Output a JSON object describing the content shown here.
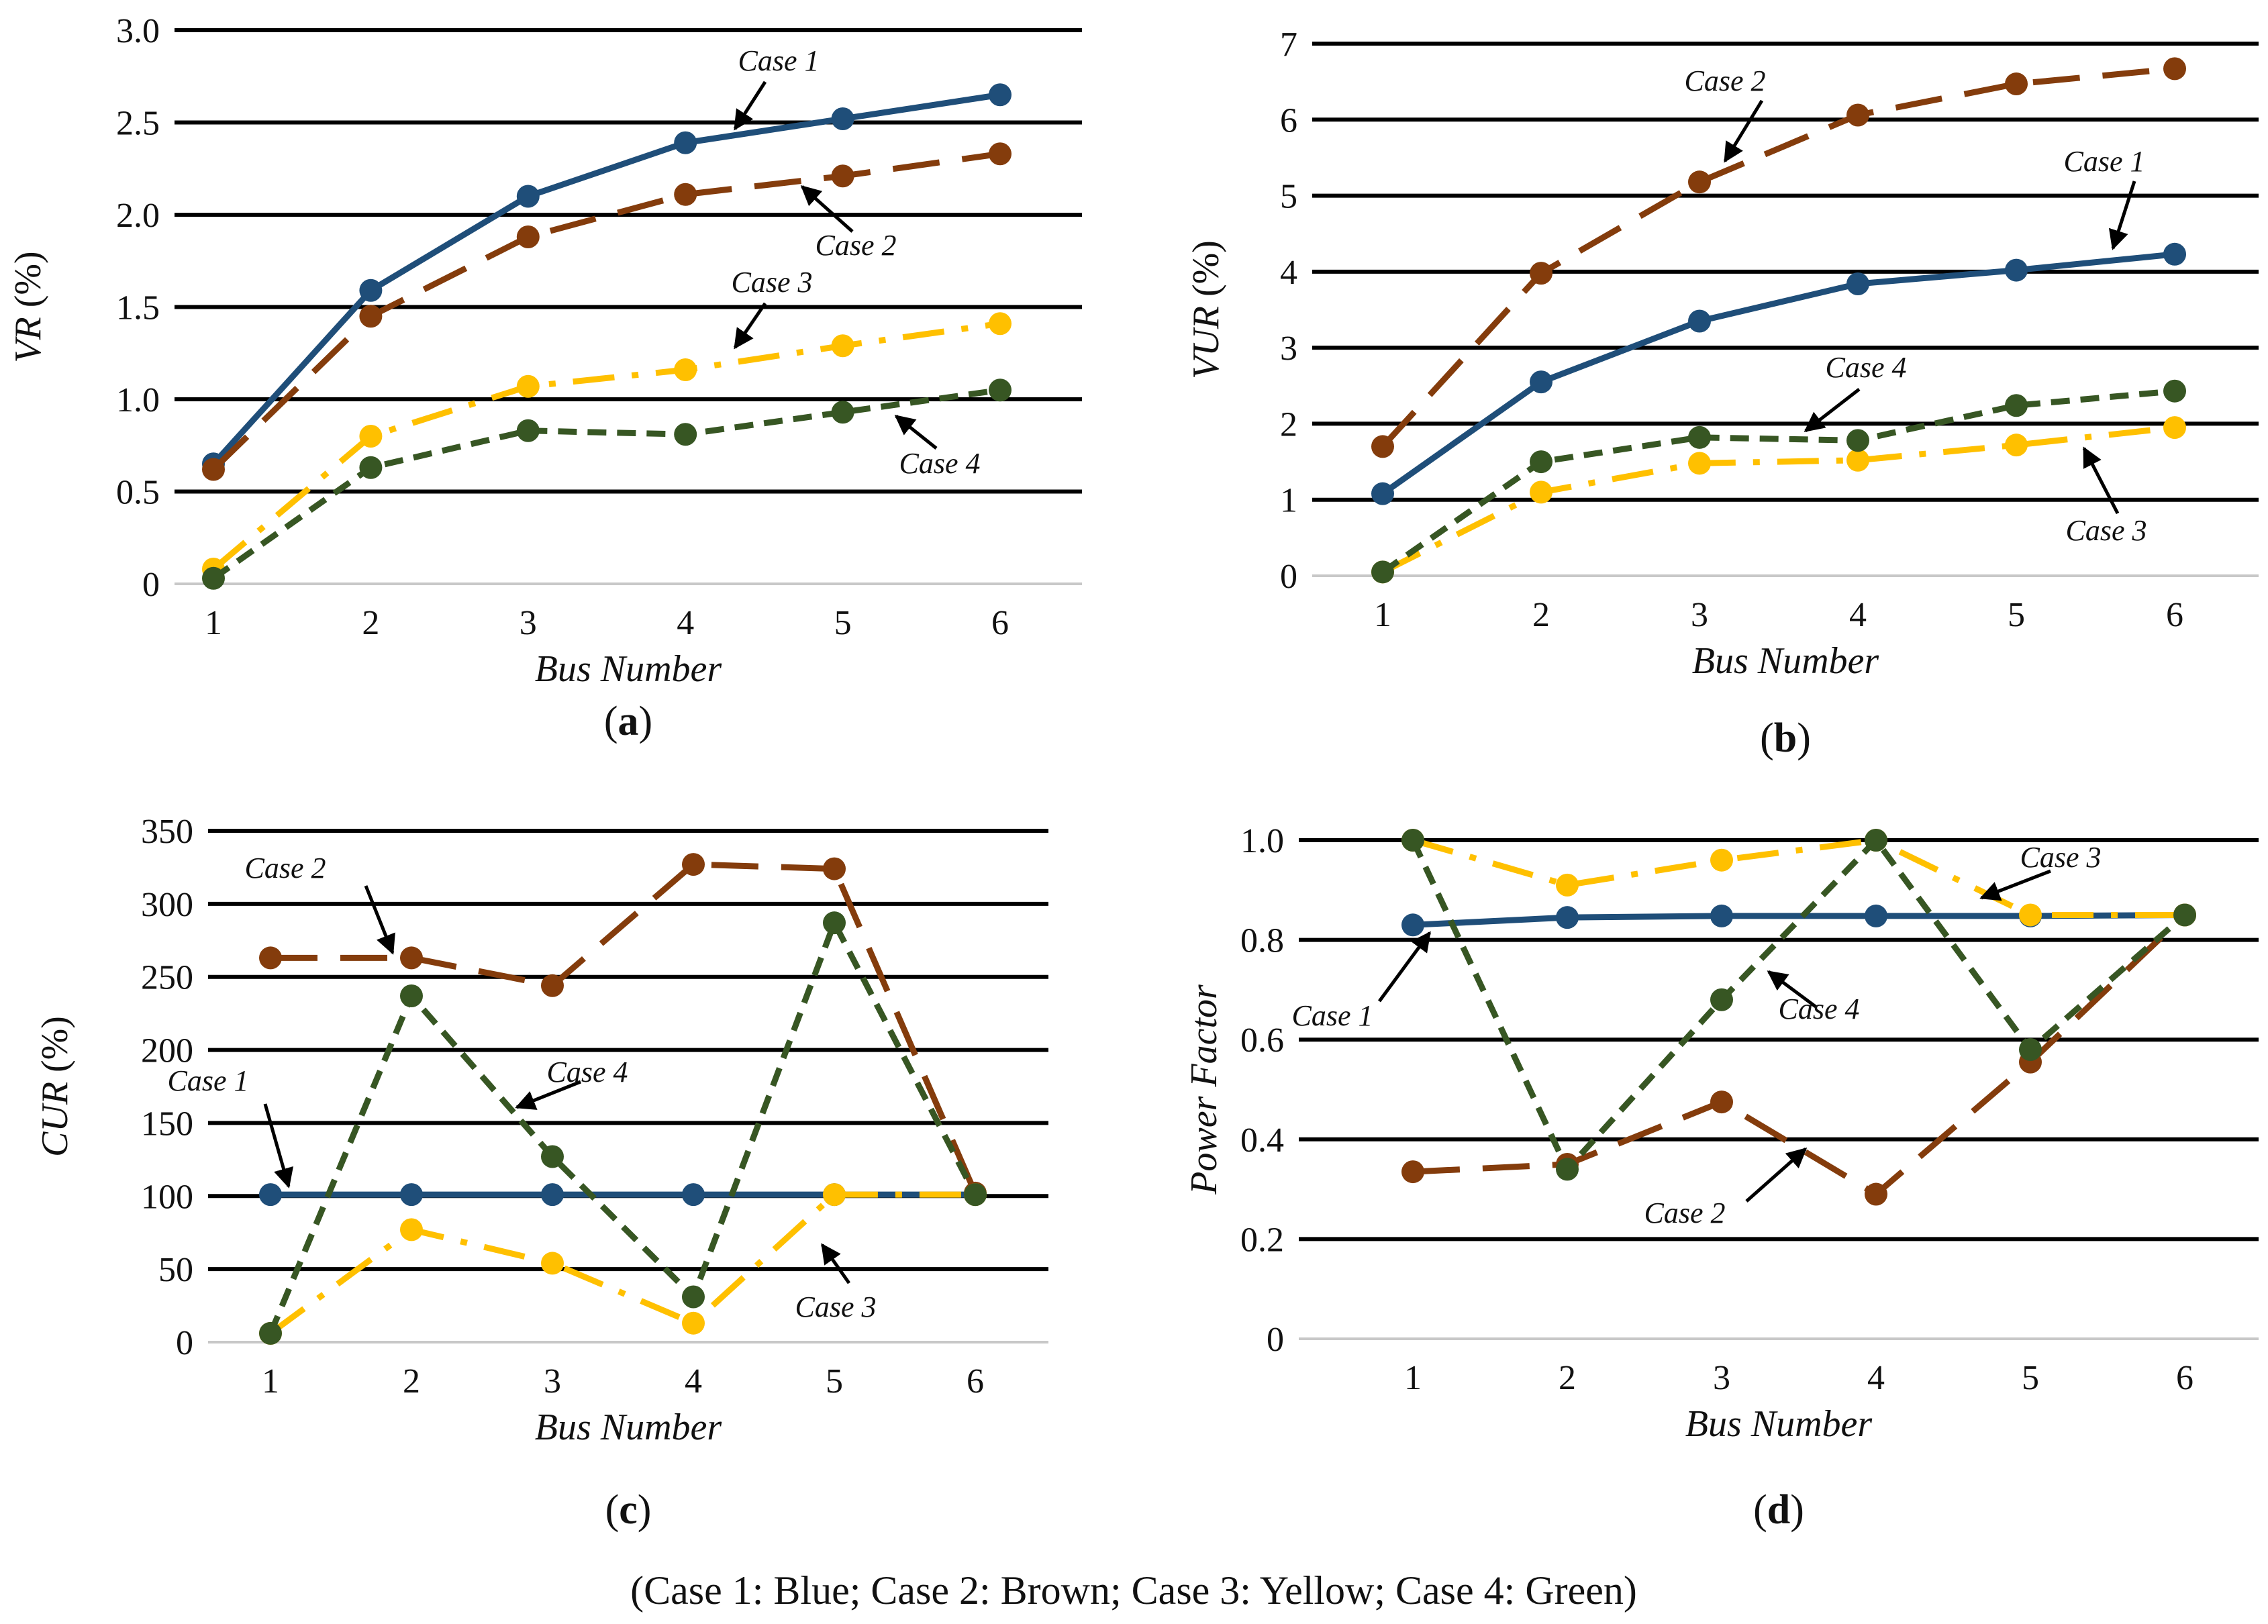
{
  "caption": "(Case 1: Blue; Case 2: Brown; Case 3: Yellow; Case 4: Green)",
  "series_styles": [
    {
      "name": "Case 1",
      "color": "#1F4E79",
      "dash": "solid"
    },
    {
      "name": "Case 2",
      "color": "#843C0C",
      "dash": "longdash"
    },
    {
      "name": "Case 3",
      "color": "#FFC000",
      "dash": "dashdot"
    },
    {
      "name": "Case 4",
      "color": "#375623",
      "dash": "shortdash"
    }
  ],
  "chart_data": [
    {
      "type": "line",
      "panel": "(a)",
      "panel_letter": "a",
      "xlabel": "Bus Number",
      "ylabel": "VR (%)",
      "ylabel_main": "VR",
      "ylabel_unit": " (%)",
      "x": [
        1,
        2,
        3,
        4,
        5,
        6
      ],
      "ylim": [
        0,
        3.0
      ],
      "yticks": [
        "0",
        "0.5",
        "1.0",
        "1.5",
        "2.0",
        "2.5",
        "3.0"
      ],
      "series": [
        {
          "name": "Case 1",
          "values": [
            0.65,
            1.59,
            2.1,
            2.39,
            2.52,
            2.65
          ]
        },
        {
          "name": "Case 2",
          "values": [
            0.62,
            1.45,
            1.88,
            2.11,
            2.21,
            2.33
          ]
        },
        {
          "name": "Case 3",
          "values": [
            0.08,
            0.8,
            1.07,
            1.16,
            1.29,
            1.41
          ]
        },
        {
          "name": "Case 4",
          "values": [
            0.03,
            0.63,
            0.83,
            0.81,
            0.93,
            1.05
          ]
        }
      ],
      "annotations": [
        "Case 1",
        "Case 2",
        "Case 3",
        "Case 4"
      ]
    },
    {
      "type": "line",
      "panel": "(b)",
      "panel_letter": "b",
      "xlabel": "Bus Number",
      "ylabel": "VUR (%)",
      "ylabel_main": "VUR",
      "ylabel_unit": " (%)",
      "x": [
        1,
        2,
        3,
        4,
        5,
        6
      ],
      "ylim": [
        0,
        7
      ],
      "yticks": [
        "0",
        "1",
        "2",
        "3",
        "4",
        "5",
        "6",
        "7"
      ],
      "series": [
        {
          "name": "Case 1",
          "values": [
            1.08,
            2.55,
            3.35,
            3.84,
            4.02,
            4.23
          ]
        },
        {
          "name": "Case 2",
          "values": [
            1.7,
            3.98,
            5.18,
            6.06,
            6.47,
            6.67
          ]
        },
        {
          "name": "Case 3",
          "values": [
            0.05,
            1.1,
            1.48,
            1.52,
            1.72,
            1.95
          ]
        },
        {
          "name": "Case 4",
          "values": [
            0.05,
            1.5,
            1.82,
            1.78,
            2.24,
            2.43
          ]
        }
      ],
      "annotations": [
        "Case 2",
        "Case 1",
        "Case 4",
        "Case 3"
      ]
    },
    {
      "type": "line",
      "panel": "(c)",
      "panel_letter": "c",
      "xlabel": "Bus Number",
      "ylabel": "CUR (%)",
      "ylabel_main": "CUR",
      "ylabel_unit": " (%)",
      "x": [
        1,
        2,
        3,
        4,
        5,
        6
      ],
      "ylim": [
        0,
        350
      ],
      "yticks": [
        "0",
        "50",
        "100",
        "150",
        "200",
        "250",
        "300",
        "350"
      ],
      "series": [
        {
          "name": "Case 1",
          "values": [
            101,
            101,
            101,
            101,
            101,
            101
          ]
        },
        {
          "name": "Case 2",
          "values": [
            263,
            263,
            244,
            327,
            324,
            102
          ]
        },
        {
          "name": "Case 3",
          "values": [
            6,
            77,
            54,
            13,
            101,
            101
          ]
        },
        {
          "name": "Case 4",
          "values": [
            6,
            237,
            127,
            31,
            287,
            101
          ]
        }
      ],
      "annotations": [
        "Case 2",
        "Case 1",
        "Case 4",
        "Case 3"
      ]
    },
    {
      "type": "line",
      "panel": "(d)",
      "panel_letter": "d",
      "xlabel": "Bus Number",
      "ylabel": "Power Factor",
      "ylabel_main": "Power Factor",
      "ylabel_unit": "",
      "x": [
        1,
        2,
        3,
        4,
        5,
        6
      ],
      "ylim": [
        0,
        1.0
      ],
      "yticks": [
        "0",
        "0.2",
        "0.4",
        "0.6",
        "0.8",
        "1.0"
      ],
      "series": [
        {
          "name": "Case 1",
          "values": [
            0.83,
            0.845,
            0.848,
            0.848,
            0.848,
            0.85
          ]
        },
        {
          "name": "Case 2",
          "values": [
            0.335,
            0.35,
            0.475,
            0.29,
            0.555,
            0.85
          ]
        },
        {
          "name": "Case 3",
          "values": [
            1.0,
            0.91,
            0.96,
            1.0,
            0.85,
            0.85
          ]
        },
        {
          "name": "Case 4",
          "values": [
            1.0,
            0.34,
            0.68,
            1.0,
            0.58,
            0.85
          ]
        }
      ],
      "annotations": [
        "Case 3",
        "Case 1",
        "Case 4",
        "Case 2"
      ]
    }
  ]
}
